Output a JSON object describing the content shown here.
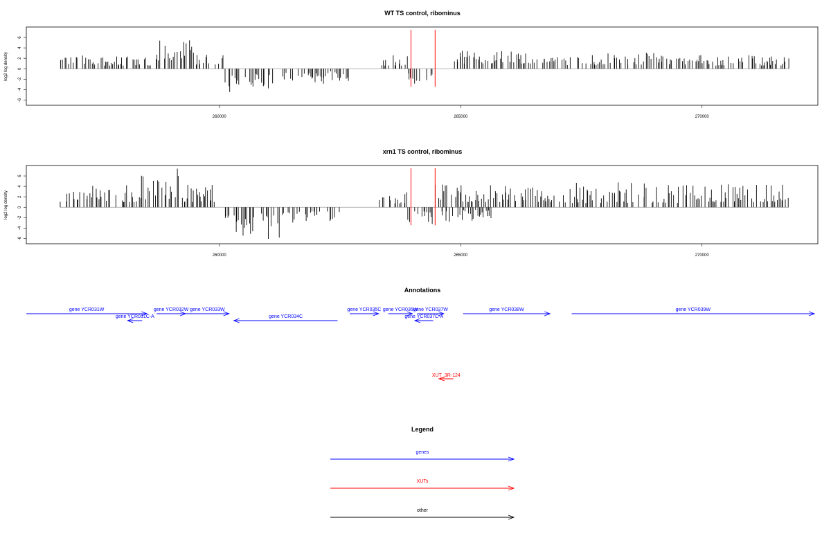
{
  "chart_data": [
    {
      "type": "bar",
      "title": "WT TS control, ribominus",
      "ylabel": "log2 log density",
      "ylim": [
        -7,
        8
      ],
      "yticks": [
        -6,
        -4,
        -2,
        0,
        2,
        4,
        6
      ],
      "xlim": [
        256000,
        272400
      ],
      "xticks": [
        260000,
        265000,
        270000
      ],
      "region_lines": [
        263970,
        264470
      ],
      "region_color": "#ff0000",
      "segments": [
        {
          "start": 256700,
          "end": 257600,
          "min": 0.8,
          "max": 2.6,
          "sign": 1
        },
        {
          "start": 257600,
          "end": 258700,
          "min": 0.6,
          "max": 2.8,
          "sign": 1
        },
        {
          "start": 258700,
          "end": 259500,
          "min": 1.5,
          "max": 5.5,
          "sign": 1
        },
        {
          "start": 259500,
          "end": 260100,
          "min": 0.8,
          "max": 3.3,
          "sign": 1
        },
        {
          "start": 260100,
          "end": 261200,
          "min": 1.0,
          "max": 4.5,
          "sign": -1
        },
        {
          "start": 261200,
          "end": 262300,
          "min": 0.8,
          "max": 3.0,
          "sign": -1
        },
        {
          "start": 262300,
          "end": 262700,
          "min": 0.5,
          "max": 2.5,
          "sign": -1
        },
        {
          "start": 263300,
          "end": 263900,
          "min": 0.6,
          "max": 3.0,
          "sign": 1
        },
        {
          "start": 263900,
          "end": 264450,
          "min": 0.8,
          "max": 3.2,
          "sign": -1
        },
        {
          "start": 264850,
          "end": 266900,
          "min": 1.0,
          "max": 3.5,
          "sign": 1
        },
        {
          "start": 266900,
          "end": 268100,
          "min": 0.7,
          "max": 3.2,
          "sign": 1
        },
        {
          "start": 268100,
          "end": 269800,
          "min": 0.8,
          "max": 3.2,
          "sign": 1
        },
        {
          "start": 269800,
          "end": 271800,
          "min": 0.6,
          "max": 2.8,
          "sign": 1
        }
      ]
    },
    {
      "type": "bar",
      "title": "xrn1 TS control, ribominus",
      "ylabel": "log2 log density",
      "ylim": [
        -7,
        8
      ],
      "yticks": [
        -6,
        -4,
        -2,
        0,
        2,
        4,
        6
      ],
      "xlim": [
        256000,
        272400
      ],
      "xticks": [
        260000,
        265000,
        270000
      ],
      "region_lines": [
        263970,
        264470
      ],
      "region_color": "#ff0000",
      "segments": [
        {
          "start": 256700,
          "end": 258300,
          "min": 1.0,
          "max": 4.5,
          "sign": 1
        },
        {
          "start": 258300,
          "end": 259200,
          "min": 1.5,
          "max": 7.5,
          "sign": 1
        },
        {
          "start": 259200,
          "end": 259900,
          "min": 1.0,
          "max": 4.3,
          "sign": 1
        },
        {
          "start": 260100,
          "end": 261400,
          "min": 1.0,
          "max": 6.2,
          "sign": -1
        },
        {
          "start": 261400,
          "end": 262500,
          "min": 0.8,
          "max": 3.0,
          "sign": -1
        },
        {
          "start": 263300,
          "end": 263900,
          "min": 0.7,
          "max": 3.0,
          "sign": 1
        },
        {
          "start": 263900,
          "end": 264450,
          "min": 0.8,
          "max": 3.5,
          "sign": -1
        },
        {
          "start": 264450,
          "end": 266900,
          "min": 1.0,
          "max": 4.5,
          "sign": 1
        },
        {
          "start": 264500,
          "end": 265700,
          "min": 0.5,
          "max": 3.0,
          "sign": -1
        },
        {
          "start": 266900,
          "end": 269500,
          "min": 0.8,
          "max": 4.8,
          "sign": 1
        },
        {
          "start": 269500,
          "end": 271800,
          "min": 1.0,
          "max": 4.5,
          "sign": 1
        }
      ]
    }
  ],
  "annotations": {
    "title": "Annotations",
    "genes": [
      {
        "label": "gene YCR031W",
        "start": 256000,
        "end": 258500,
        "strand": "+",
        "row": 0
      },
      {
        "label": "gene YCR031C-A",
        "start": 258100,
        "end": 258400,
        "strand": "-",
        "row": 1
      },
      {
        "label": "gene YCR032W",
        "start": 258700,
        "end": 259300,
        "strand": "+",
        "row": 0
      },
      {
        "label": "gene YCR033W",
        "start": 259300,
        "end": 260200,
        "strand": "+",
        "row": 0
      },
      {
        "label": "gene YCR034C",
        "start": 260300,
        "end": 262450,
        "strand": "-",
        "row": 1
      },
      {
        "label": "gene YCR035C",
        "start": 262700,
        "end": 263300,
        "strand": "+",
        "row": 0
      },
      {
        "label": "gene YCR036W",
        "start": 263500,
        "end": 264000,
        "strand": "+",
        "row": 0
      },
      {
        "label": "gene YCR037W",
        "start": 264100,
        "end": 264650,
        "strand": "+",
        "row": 0
      },
      {
        "label": "gene YCR037C-A",
        "start": 264050,
        "end": 264430,
        "strand": "-",
        "row": 1
      },
      {
        "label": "gene YCR038W",
        "start": 265050,
        "end": 266850,
        "strand": "+",
        "row": 0
      },
      {
        "label": "gene YCR039W",
        "start": 267300,
        "end": 272400,
        "strand": "+",
        "row": 0
      }
    ],
    "xuts": [
      {
        "label": "XUT_3R-124",
        "start": 264550,
        "end": 264850,
        "strand": "-"
      }
    ]
  },
  "legend": {
    "title": "Legend",
    "items": [
      {
        "label": "genes",
        "color": "#0000ff"
      },
      {
        "label": "XUTs",
        "color": "#ff0000"
      },
      {
        "label": "other",
        "color": "#000000"
      }
    ]
  },
  "colors": {
    "gene": "#0000ff",
    "xut": "#ff0000",
    "other": "#000000",
    "baseline": "#999999"
  }
}
